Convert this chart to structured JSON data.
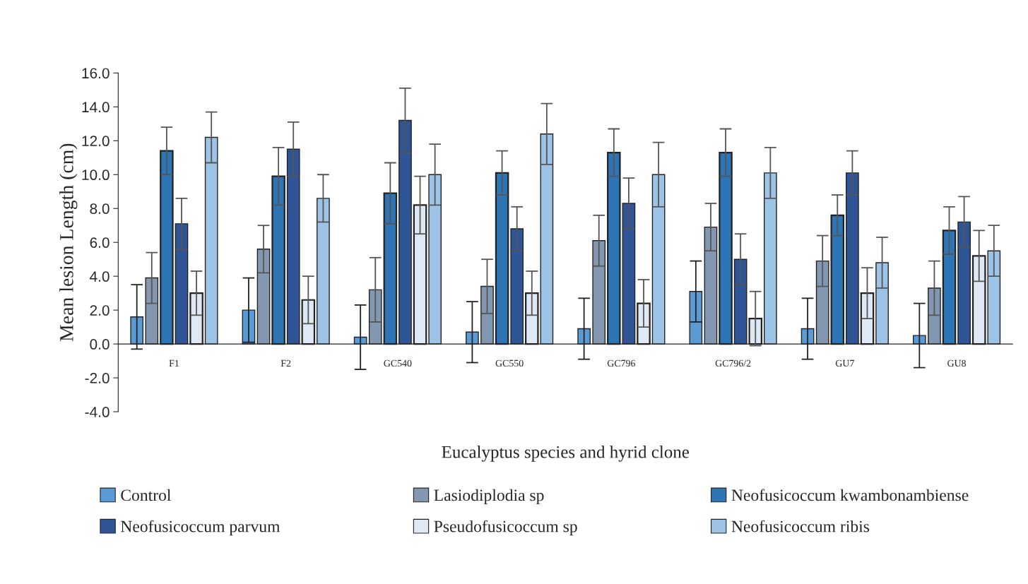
{
  "chart_data": {
    "type": "bar",
    "xlabel": "Eucalyptus species and hyrid clone",
    "ylabel": "Mean lesion Length (cm)",
    "categories": [
      "F1",
      "F2",
      "GC540",
      "GC550",
      "GC796",
      "GC796/2",
      "GU7",
      "GU8"
    ],
    "series": [
      {
        "name": "Control",
        "color": "#5b9bd5",
        "values": [
          1.6,
          2.0,
          0.4,
          0.7,
          0.9,
          3.1,
          0.9,
          0.5
        ],
        "errors": [
          1.9,
          1.9,
          1.9,
          1.8,
          1.8,
          1.8,
          1.8,
          1.9
        ]
      },
      {
        "name": "Lasiodiplodia sp",
        "color": "#8497b0",
        "values": [
          3.9,
          5.6,
          3.2,
          3.4,
          6.1,
          6.9,
          4.9,
          3.3
        ],
        "errors": [
          1.5,
          1.4,
          1.9,
          1.6,
          1.5,
          1.4,
          1.5,
          1.6
        ]
      },
      {
        "name": "Neofusicoccum kwambonambiense",
        "color": "#2e75b6",
        "values": [
          11.4,
          9.9,
          8.9,
          10.1,
          11.3,
          11.3,
          7.6,
          6.7
        ],
        "errors": [
          1.4,
          1.7,
          1.8,
          1.3,
          1.4,
          1.4,
          1.2,
          1.4
        ]
      },
      {
        "name": "Neofusicoccum parvum",
        "color": "#2f5597",
        "values": [
          7.1,
          11.5,
          13.2,
          6.8,
          8.3,
          5.0,
          10.1,
          7.2
        ],
        "errors": [
          1.5,
          1.6,
          1.9,
          1.3,
          1.5,
          1.5,
          1.3,
          1.5
        ]
      },
      {
        "name": "Pseudofusicoccum sp",
        "color": "#dfe9f5",
        "values": [
          3.0,
          2.6,
          8.2,
          3.0,
          2.4,
          1.5,
          3.0,
          5.2
        ],
        "errors": [
          1.3,
          1.4,
          1.7,
          1.3,
          1.4,
          1.6,
          1.5,
          1.5
        ]
      },
      {
        "name": "Neofusicoccum ribis",
        "color": "#9dc3e6",
        "values": [
          12.2,
          8.6,
          10.0,
          12.4,
          10.0,
          10.1,
          4.8,
          5.5
        ],
        "errors": [
          1.5,
          1.4,
          1.8,
          1.8,
          1.9,
          1.5,
          1.5,
          1.5
        ]
      }
    ],
    "ylim": [
      -4.0,
      16.0
    ],
    "yticks": [
      {
        "value": -4,
        "label": "-4.0"
      },
      {
        "value": -2,
        "label": "-2.0"
      },
      {
        "value": 0,
        "label": "0.0"
      },
      {
        "value": 2,
        "label": "2.0"
      },
      {
        "value": 4,
        "label": "4.0"
      },
      {
        "value": 6,
        "label": "6.0"
      },
      {
        "value": 8,
        "label": "8.0"
      },
      {
        "value": 10,
        "label": "10.0"
      },
      {
        "value": 12,
        "label": "12.0"
      },
      {
        "value": 14,
        "label": "14.0"
      },
      {
        "value": 16,
        "label": "16.0"
      }
    ],
    "grid": false,
    "legend": "bottom"
  }
}
